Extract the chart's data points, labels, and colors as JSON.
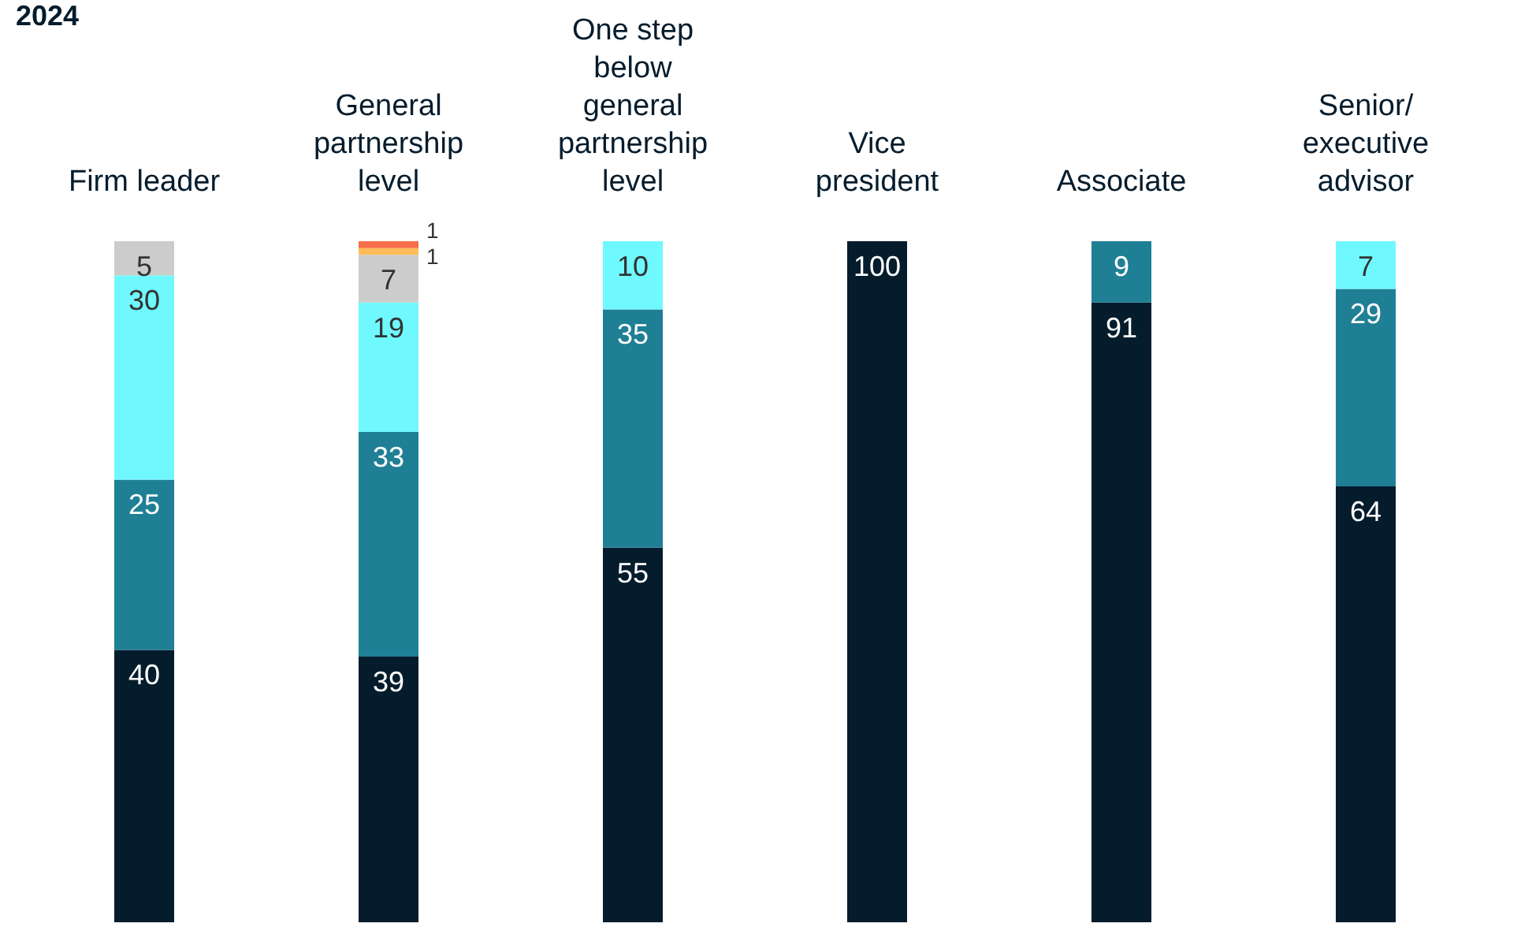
{
  "chart_data": {
    "type": "bar",
    "title": "2024",
    "stacked": true,
    "data_labels": true,
    "legend": false,
    "grid": false,
    "tick_labels": "x",
    "ylim": [
      0,
      100
    ],
    "categories": [
      "Firm leader",
      "General\npartnership\nlevel",
      "One step\nbelow\ngeneral\npartnership\nlevel",
      "Vice\npresident",
      "Associate",
      "Senior/\nexecutive\nadvisor"
    ],
    "series": [
      {
        "color": "#051c2c",
        "values": [
          40,
          39,
          55,
          100,
          91,
          64
        ]
      },
      {
        "color": "#1f7f95",
        "values": [
          25,
          33,
          35,
          null,
          9,
          29
        ]
      },
      {
        "color": "#6ff9ff",
        "values": [
          30,
          19,
          10,
          null,
          null,
          7
        ]
      },
      {
        "color": "#cccccc",
        "values": [
          5,
          7,
          null,
          null,
          null,
          null
        ]
      },
      {
        "color": "#ffbd59",
        "values": [
          null,
          1,
          null,
          null,
          null,
          null
        ]
      },
      {
        "color": "#f56e49",
        "values": [
          null,
          1,
          null,
          null,
          null,
          null
        ]
      }
    ]
  }
}
